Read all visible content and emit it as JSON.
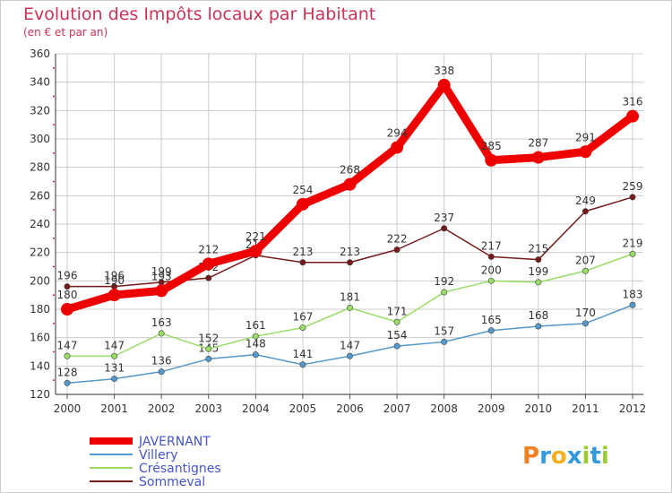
{
  "chart_data": {
    "type": "line",
    "title": "Evolution des Impôts locaux par Habitant",
    "subtitle": "(en € et par an)",
    "xlabel": "",
    "ylabel": "",
    "ylim": [
      120,
      360
    ],
    "yticks": [
      120,
      140,
      160,
      180,
      200,
      220,
      240,
      260,
      280,
      300,
      320,
      340,
      360
    ],
    "grid": true,
    "x": [
      "2000",
      "2001",
      "2002",
      "2003",
      "2004",
      "2005",
      "2006",
      "2007",
      "2008",
      "2009",
      "2010",
      "2011",
      "2012"
    ],
    "series": [
      {
        "name": "JAVERNANT",
        "values": [
          180,
          190,
          193,
          212,
          221,
          254,
          268,
          294,
          338,
          285,
          287,
          291,
          316
        ],
        "color": "#ee0000",
        "bold": true
      },
      {
        "name": "Villery",
        "values": [
          128,
          131,
          136,
          145,
          148,
          141,
          147,
          154,
          157,
          165,
          168,
          170,
          183
        ],
        "color": "#5599cc",
        "bold": false
      },
      {
        "name": "Crésantignes",
        "values": [
          147,
          147,
          163,
          152,
          161,
          167,
          181,
          171,
          192,
          200,
          199,
          207,
          219
        ],
        "color": "#99dd66",
        "bold": false
      },
      {
        "name": "Sommeval",
        "values": [
          196,
          196,
          199,
          202,
          218,
          213,
          213,
          222,
          237,
          217,
          215,
          249,
          259
        ],
        "color": "#771a1a",
        "bold": false
      }
    ],
    "legend": "bottom-left"
  },
  "brand": {
    "logo_text": "Proxiti",
    "letters": [
      "P",
      "r",
      "o",
      "x",
      "i",
      "t",
      "i"
    ],
    "letter_colors": [
      "#f08020",
      "#3399dd",
      "#f0b020",
      "#3399dd",
      "#99cc33",
      "#3399dd",
      "#99cc33"
    ]
  },
  "colors": {
    "title": "#cc3355",
    "legend_text": "#4455cc",
    "axis": "#555555",
    "tick_marker": "#cc3355",
    "grid": "#cccccc",
    "label": "#333333"
  }
}
